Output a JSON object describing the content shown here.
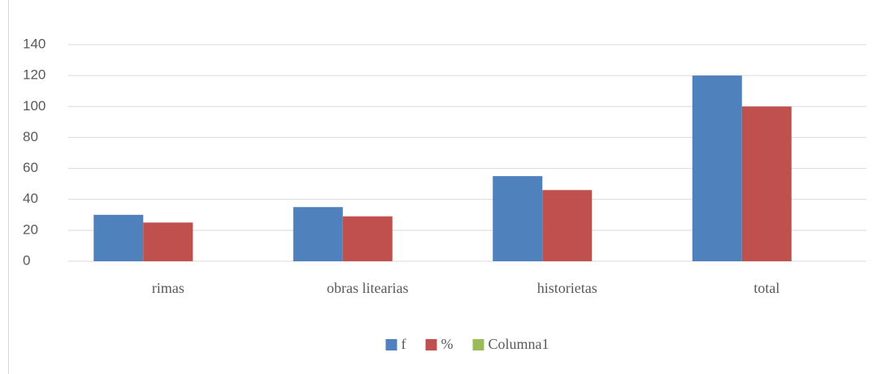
{
  "chart_data": {
    "type": "bar",
    "categories": [
      "rimas",
      "obras litearias",
      "historietas",
      "total"
    ],
    "series": [
      {
        "name": "f",
        "color": "#4f81bd",
        "values": [
          30,
          35,
          55,
          120
        ]
      },
      {
        "name": "%",
        "color": "#c0504d",
        "values": [
          25,
          29,
          46,
          100
        ]
      },
      {
        "name": "Columna1",
        "color": "#9bbb59",
        "values": [
          null,
          null,
          null,
          null
        ]
      }
    ],
    "ylim": [
      0,
      140
    ],
    "yticks": [
      0,
      20,
      40,
      60,
      80,
      100,
      120,
      140
    ],
    "grid": true,
    "legend": "bottom"
  }
}
